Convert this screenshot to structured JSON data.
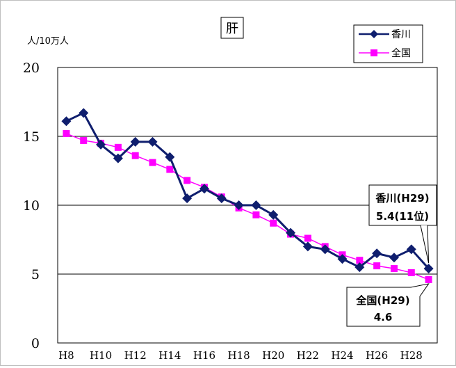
{
  "chart_data": {
    "type": "line",
    "title": "肝",
    "ylabel": "人/10万人",
    "xlabel": "",
    "ylim": [
      0,
      20
    ],
    "yticks": [
      "0",
      "5",
      "10",
      "15",
      "20"
    ],
    "grid": true,
    "legend_position": "top-right",
    "x": [
      "H8",
      "H9",
      "H10",
      "H11",
      "H12",
      "H13",
      "H14",
      "H15",
      "H16",
      "H17",
      "H18",
      "H19",
      "H20",
      "H21",
      "H22",
      "H23",
      "H24",
      "H25",
      "H26",
      "H27",
      "H28",
      "H29"
    ],
    "xtick_labels": [
      "H8",
      "H10",
      "H12",
      "H14",
      "H16",
      "H18",
      "H20",
      "H22",
      "H24",
      "H26",
      "H28"
    ],
    "series": [
      {
        "name": "香川",
        "color": "#0f1e6e",
        "marker": "diamond",
        "values": [
          16.1,
          16.7,
          14.4,
          13.4,
          14.6,
          14.6,
          13.5,
          10.5,
          11.2,
          10.5,
          10.0,
          10.0,
          9.3,
          8.0,
          7.0,
          6.8,
          6.1,
          5.5,
          6.5,
          6.2,
          6.8,
          5.4
        ]
      },
      {
        "name": "全国",
        "color": "#ff00ff",
        "marker": "square",
        "values": [
          15.2,
          14.7,
          14.5,
          14.2,
          13.6,
          13.1,
          12.6,
          11.8,
          11.3,
          10.6,
          9.8,
          9.3,
          8.7,
          7.9,
          7.6,
          7.0,
          6.4,
          6.0,
          5.6,
          5.4,
          5.1,
          4.6
        ]
      }
    ],
    "annotations": [
      {
        "series": "香川",
        "line1": "香川(H29)",
        "line2": "5.4(11位)"
      },
      {
        "series": "全国",
        "line1": "全国(H29)",
        "line2": "4.6"
      }
    ]
  }
}
